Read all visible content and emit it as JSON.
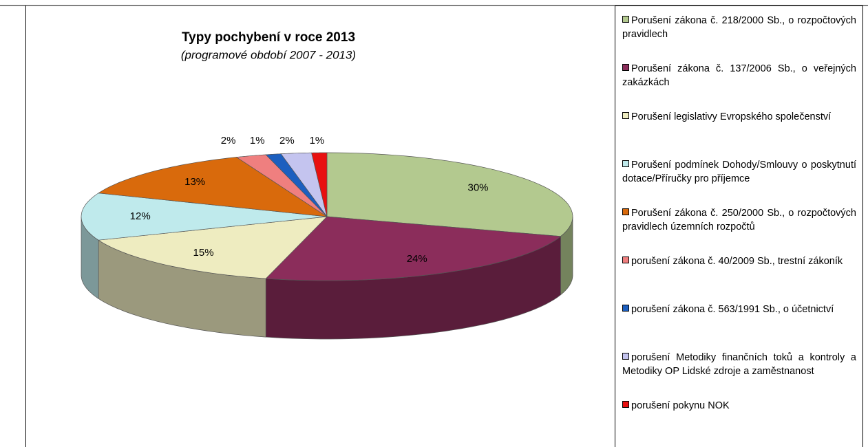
{
  "chart_data": {
    "type": "pie3d",
    "title": "Typy pochybení v roce 2013",
    "subtitle": "(programové období 2007 - 2013)",
    "categories": [
      "Porušení zákona č. 218/2000 Sb., o rozpočtových pravidlech",
      "Porušení zákona č. 137/2006 Sb., o veřejných zakázkách",
      "Porušení legislativy Evropského společenství",
      "Porušení podmínek Dohody/Smlouvy o poskytnutí dotace/Příručky pro příjemce",
      "Porušení zákona č. 250/2000 Sb., o rozpočtových pravidlech územních rozpočtů",
      "porušení zákona č. 40/2009 Sb., trestní zákoník",
      "porušení zákona č. 563/1991 Sb., o účetnictví",
      "porušení Metodiky finančních toků a kontroly a Metodiky OP Lidské zdroje a zaměstnanost",
      "porušení pokynu NOK"
    ],
    "values": [
      30,
      24,
      15,
      12,
      13,
      2,
      1,
      2,
      1
    ],
    "value_labels": [
      "30%",
      "24%",
      "15%",
      "12%",
      "13%",
      "2%",
      "1%",
      "2%",
      "1%"
    ],
    "colors": [
      "#b3c98f",
      "#8b2d5b",
      "#eeecc0",
      "#bfeaec",
      "#d96a0c",
      "#ef7f7f",
      "#1c5fbf",
      "#c4c4ef",
      "#e81010"
    ],
    "legend": "right"
  }
}
